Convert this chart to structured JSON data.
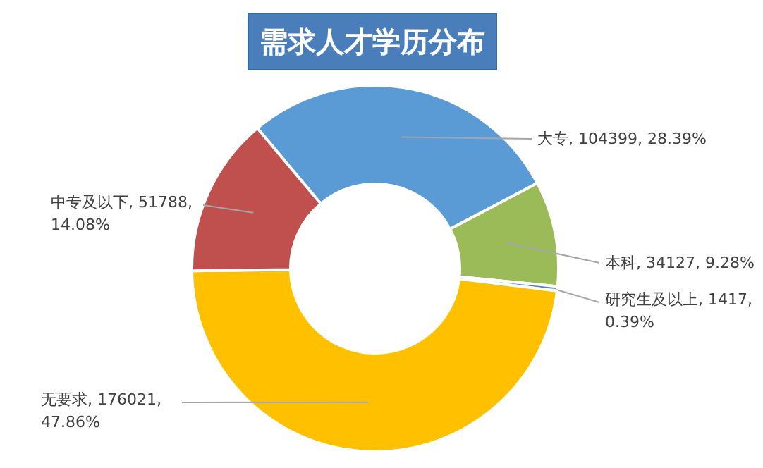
{
  "chart_data": {
    "type": "donut",
    "title": "需求人才学历分布",
    "categories": [
      "大专",
      "本科",
      "研究生及以上",
      "无要求",
      "中专及以下"
    ],
    "values": [
      104399,
      34127,
      1417,
      176021,
      51788
    ],
    "colors": [
      "#5b9bd5",
      "#9bbb59",
      "#4f81bd",
      "#ffc000",
      "#c0504d"
    ],
    "value_labels": [
      "104399, 28.39%",
      "34127, 9.28%",
      "1417,\n0.39%",
      "176021,\n47.86%",
      "51788,\n14.08%"
    ]
  }
}
